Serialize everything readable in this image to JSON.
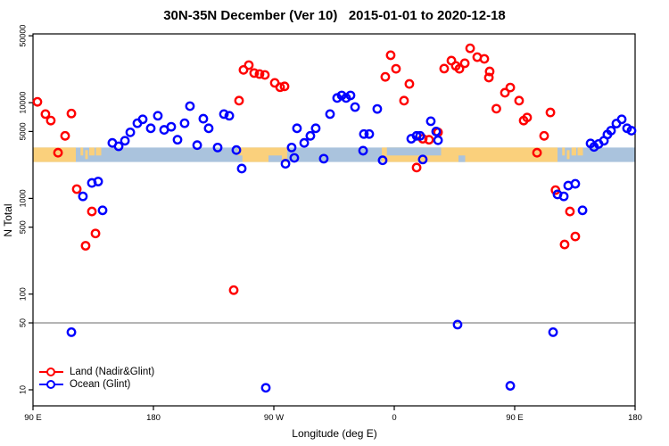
{
  "title": "30N-35N December (Ver 10)   2015-01-01 to 2020-12-18",
  "axes": {
    "x": {
      "label": "Longitude (deg E)",
      "range_deg": [
        90,
        540
      ],
      "ticks": [
        {
          "lon": 90,
          "label": "90 E"
        },
        {
          "lon": 180,
          "label": "180"
        },
        {
          "lon": 270,
          "label": "90 W"
        },
        {
          "lon": 360,
          "label": "0"
        },
        {
          "lon": 450,
          "label": "90 E"
        },
        {
          "lon": 540,
          "label": "180"
        }
      ]
    },
    "y": {
      "label": "N Total",
      "scale": "log10",
      "ticks": [
        10,
        50,
        100,
        500,
        1000,
        5000,
        10000,
        50000
      ],
      "range": [
        7,
        52000
      ]
    }
  },
  "reference_line": {
    "value": 50,
    "color": "#6b6b6b"
  },
  "map_band": {
    "top_value": 3400,
    "bottom_value": 2400,
    "ocean_color": "#aac3dd",
    "land_color": "#fad07c",
    "land_segments": [
      {
        "from": 90,
        "to": 122,
        "vpos": "full"
      },
      {
        "from": 125.5,
        "to": 127.5,
        "vpos": "upper"
      },
      {
        "from": 129,
        "to": 131,
        "vpos": "mid"
      },
      {
        "from": 132,
        "to": 136,
        "vpos": "upper"
      },
      {
        "from": 137,
        "to": 141,
        "vpos": "upper"
      },
      {
        "from": 243,
        "to": 280,
        "vpos": "full"
      },
      {
        "from": 350.7,
        "to": 482,
        "vpos": "full"
      },
      {
        "from": 485.5,
        "to": 487.5,
        "vpos": "upper"
      },
      {
        "from": 489,
        "to": 491,
        "vpos": "mid"
      },
      {
        "from": 492.5,
        "to": 496,
        "vpos": "upper"
      },
      {
        "from": 497,
        "to": 501,
        "vpos": "upper"
      }
    ],
    "ocean_notches": [
      {
        "from": 243,
        "to": 246.5,
        "vpos": "lower"
      },
      {
        "from": 266,
        "to": 276,
        "vpos": "lower"
      },
      {
        "from": 354.5,
        "to": 395,
        "vpos": "upper"
      },
      {
        "from": 408,
        "to": 413,
        "vpos": "lower"
      }
    ]
  },
  "legend": [
    {
      "label": "Land (Nadir&Glint)",
      "color": "#ff0000"
    },
    {
      "label": "Ocean (Glint)",
      "color": "#0000ff"
    }
  ],
  "chart_data": {
    "type": "scatter",
    "title": "30N-35N December (Ver 10)   2015-01-01 to 2020-12-18",
    "xlabel": "Longitude (deg E)",
    "ylabel": "N Total",
    "x_unit": "degrees east, wrapped 90E to 180 (second cycle)",
    "ylim": [
      7,
      52000
    ],
    "legend_position": "bottom-left",
    "grid": false,
    "series": [
      {
        "name": "Land (Nadir&Glint)",
        "color": "#ff0000",
        "marker": "open-circle",
        "points": [
          [
            93.3,
            10200
          ],
          [
            99.3,
            7600
          ],
          [
            103.3,
            6500
          ],
          [
            108.7,
            3000
          ],
          [
            114,
            4500
          ],
          [
            118.7,
            7700
          ],
          [
            122.7,
            1250
          ],
          [
            129.3,
            320
          ],
          [
            134,
            730
          ],
          [
            136.7,
            430
          ],
          [
            240,
            110
          ],
          [
            244,
            10500
          ],
          [
            247.3,
            22000
          ],
          [
            251.3,
            24700
          ],
          [
            255.3,
            20400
          ],
          [
            259.3,
            19900
          ],
          [
            263.3,
            19500
          ],
          [
            270.7,
            16100
          ],
          [
            274.7,
            14500
          ],
          [
            278,
            14800
          ],
          [
            353.3,
            18600
          ],
          [
            357.3,
            31300
          ],
          [
            361.3,
            22600
          ],
          [
            367.3,
            10500
          ],
          [
            371.3,
            15700
          ],
          [
            376.7,
            2100
          ],
          [
            381.3,
            4200
          ],
          [
            386,
            4100
          ],
          [
            392.7,
            4900
          ],
          [
            397.3,
            22700
          ],
          [
            402.7,
            27500
          ],
          [
            406,
            24200
          ],
          [
            408.7,
            22600
          ],
          [
            412.7,
            25800
          ],
          [
            416.7,
            37000
          ],
          [
            422,
            29900
          ],
          [
            427.3,
            28700
          ],
          [
            430.7,
            18300
          ],
          [
            431.3,
            21200
          ],
          [
            436.3,
            8650
          ],
          [
            442.7,
            12700
          ],
          [
            446.7,
            14400
          ],
          [
            453.3,
            10500
          ],
          [
            456.7,
            6500
          ],
          [
            459.3,
            7000
          ],
          [
            466.7,
            3000
          ],
          [
            472,
            4500
          ],
          [
            476.7,
            7900
          ],
          [
            480.5,
            1220
          ],
          [
            487.3,
            330
          ],
          [
            491.3,
            730
          ],
          [
            495.3,
            400
          ]
        ]
      },
      {
        "name": "Ocean (Glint)",
        "color": "#0000ff",
        "marker": "open-circle",
        "points": [
          [
            118.7,
            40
          ],
          [
            127.3,
            1050
          ],
          [
            134,
            1450
          ],
          [
            138.7,
            1500
          ],
          [
            142,
            750
          ],
          [
            149.3,
            3800
          ],
          [
            154,
            3500
          ],
          [
            158.7,
            4000
          ],
          [
            162.7,
            4900
          ],
          [
            168,
            6100
          ],
          [
            172,
            6700
          ],
          [
            178,
            5400
          ],
          [
            183.3,
            7300
          ],
          [
            188,
            5200
          ],
          [
            193.3,
            5600
          ],
          [
            198,
            4100
          ],
          [
            203.3,
            6100
          ],
          [
            207.3,
            9200
          ],
          [
            212.7,
            3600
          ],
          [
            217.3,
            6800
          ],
          [
            221.3,
            5400
          ],
          [
            228,
            3400
          ],
          [
            232.7,
            7600
          ],
          [
            236.7,
            7300
          ],
          [
            242,
            3200
          ],
          [
            246,
            2050
          ],
          [
            264,
            10.5
          ],
          [
            278.7,
            2300
          ],
          [
            283.3,
            3400
          ],
          [
            285.3,
            2650
          ],
          [
            287.3,
            5400
          ],
          [
            292.7,
            3800
          ],
          [
            297.3,
            4500
          ],
          [
            301.3,
            5400
          ],
          [
            307.3,
            2600
          ],
          [
            312,
            7600
          ],
          [
            317.3,
            11200
          ],
          [
            320.7,
            11900
          ],
          [
            324,
            11200
          ],
          [
            327.3,
            11900
          ],
          [
            330.7,
            9000
          ],
          [
            336.7,
            3150
          ],
          [
            337.3,
            4700
          ],
          [
            341.3,
            4700
          ],
          [
            347.3,
            8600
          ],
          [
            351.3,
            2500
          ],
          [
            372.7,
            4200
          ],
          [
            376.7,
            4500
          ],
          [
            379.3,
            4500
          ],
          [
            381.3,
            2550
          ],
          [
            387.3,
            6400
          ],
          [
            391.3,
            5000
          ],
          [
            392.7,
            4050
          ],
          [
            407.3,
            48
          ],
          [
            446.7,
            11
          ],
          [
            478.7,
            40
          ],
          [
            482,
            1100
          ],
          [
            486.7,
            1050
          ],
          [
            490,
            1360
          ],
          [
            495.3,
            1420
          ],
          [
            500.7,
            750
          ],
          [
            506.7,
            3750
          ],
          [
            509.3,
            3450
          ],
          [
            512.7,
            3700
          ],
          [
            516.7,
            4000
          ],
          [
            519.3,
            4650
          ],
          [
            522,
            5100
          ],
          [
            526,
            6050
          ],
          [
            530,
            6700
          ],
          [
            534,
            5400
          ],
          [
            537.3,
            5100
          ]
        ]
      }
    ]
  }
}
